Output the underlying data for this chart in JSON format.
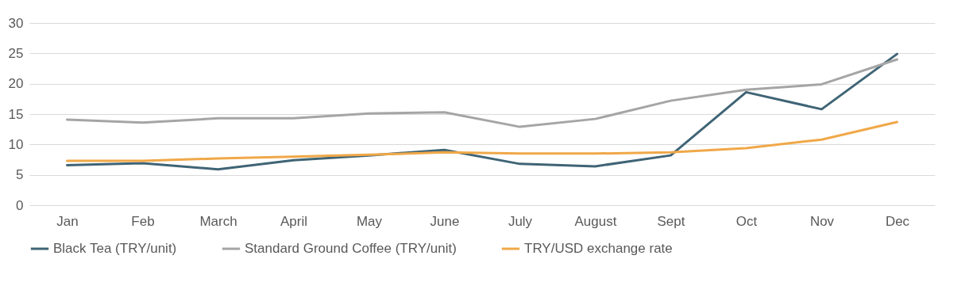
{
  "chart_data": {
    "type": "line",
    "categories": [
      "Jan",
      "Feb",
      "March",
      "April",
      "May",
      "June",
      "July",
      "August",
      "Sept",
      "Oct",
      "Nov",
      "Dec"
    ],
    "series": [
      {
        "name": "Black Tea (TRY/unit)",
        "color": "#3f6475",
        "values": [
          6.6,
          6.9,
          5.9,
          7.4,
          8.2,
          9.1,
          6.8,
          6.4,
          8.2,
          18.6,
          15.8,
          24.9
        ]
      },
      {
        "name": "Standard Ground Coffee (TRY/unit)",
        "color": "#a5a5a5",
        "values": [
          14.1,
          13.6,
          14.3,
          14.3,
          15.1,
          15.3,
          12.9,
          14.2,
          17.2,
          19.0,
          19.9,
          24.0
        ]
      },
      {
        "name": "TRY/USD exchange rate",
        "color": "#f0a848",
        "values": [
          7.3,
          7.3,
          7.7,
          8.0,
          8.3,
          8.7,
          8.5,
          8.5,
          8.7,
          9.4,
          10.8,
          13.7
        ]
      }
    ],
    "ylim": [
      0,
      30
    ],
    "yticks": [
      0,
      5,
      10,
      15,
      20,
      25,
      30
    ],
    "grid": "y",
    "legend": "bottom",
    "marker": "none",
    "line_style": "solid"
  }
}
